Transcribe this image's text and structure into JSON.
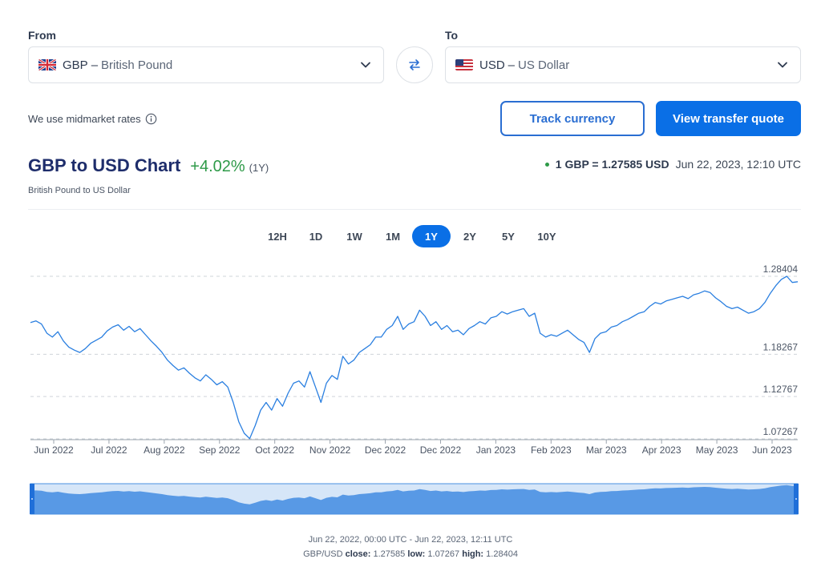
{
  "converter": {
    "from_label": "From",
    "to_label": "To",
    "from": {
      "code": "GBP",
      "separator": "–",
      "name": "British Pound"
    },
    "to": {
      "code": "USD",
      "separator": "–",
      "name": "US Dollar"
    }
  },
  "midmarket_text": "We use midmarket rates",
  "buttons": {
    "track": "Track currency",
    "quote": "View transfer quote"
  },
  "header": {
    "title": "GBP to USD Chart",
    "change": "+4.02%",
    "period": "(1Y)",
    "subtitle": "British Pound to US Dollar",
    "rate": "1 GBP = 1.27585 USD",
    "timestamp": "Jun 22, 2023, 12:10 UTC"
  },
  "tabs": [
    "12H",
    "1D",
    "1W",
    "1M",
    "1Y",
    "2Y",
    "5Y",
    "10Y"
  ],
  "active_tab": "1Y",
  "colors": {
    "accent": "#0a6fe6",
    "positive": "#2e9a48",
    "title": "#1e2d6b",
    "line": "#2a7fe0"
  },
  "chart_data": {
    "type": "line",
    "series": [
      {
        "values": [
          1.224,
          1.226,
          1.222,
          1.21,
          1.205,
          1.212,
          1.2,
          1.192,
          1.188,
          1.185,
          1.19,
          1.197,
          1.201,
          1.205,
          1.213,
          1.218,
          1.221,
          1.214,
          1.219,
          1.212,
          1.216,
          1.208,
          1.2,
          1.193,
          1.185,
          1.175,
          1.168,
          1.162,
          1.165,
          1.158,
          1.152,
          1.148,
          1.156,
          1.15,
          1.143,
          1.147,
          1.14,
          1.12,
          1.095,
          1.08,
          1.073,
          1.09,
          1.11,
          1.12,
          1.11,
          1.125,
          1.115,
          1.132,
          1.145,
          1.148,
          1.14,
          1.16,
          1.14,
          1.12,
          1.145,
          1.155,
          1.15,
          1.18,
          1.17,
          1.175,
          1.185,
          1.19,
          1.195,
          1.205,
          1.205,
          1.215,
          1.22,
          1.232,
          1.215,
          1.222,
          1.225,
          1.24,
          1.232,
          1.22,
          1.225,
          1.215,
          1.22,
          1.212,
          1.214,
          1.208,
          1.216,
          1.22,
          1.225,
          1.222,
          1.23,
          1.232,
          1.238,
          1.235,
          1.238,
          1.24,
          1.242,
          1.232,
          1.236,
          1.21,
          1.205,
          1.208,
          1.206,
          1.21,
          1.214,
          1.208,
          1.202,
          1.198,
          1.185,
          1.203,
          1.21,
          1.212,
          1.218,
          1.22,
          1.225,
          1.228,
          1.232,
          1.236,
          1.238,
          1.245,
          1.25,
          1.248,
          1.252,
          1.254,
          1.256,
          1.258,
          1.255,
          1.26,
          1.262,
          1.265,
          1.263,
          1.256,
          1.251,
          1.245,
          1.242,
          1.244,
          1.24,
          1.236,
          1.238,
          1.242,
          1.25,
          1.262,
          1.272,
          1.28,
          1.284,
          1.276,
          1.277
        ]
      }
    ],
    "x_labels": [
      "Jun 2022",
      "Jul 2022",
      "Aug 2022",
      "Sep 2022",
      "Oct 2022",
      "Nov 2022",
      "Dec 2022",
      "Dec 2022",
      "Jan 2023",
      "Feb 2023",
      "Mar 2023",
      "Apr 2023",
      "May 2023",
      "Jun 2023"
    ],
    "y_ticks": [
      "1.28404",
      "1.18267",
      "1.12767",
      "1.07267"
    ],
    "ylim": [
      1.07267,
      1.28404
    ],
    "grid": "dashed-horizontal",
    "navigator": true
  },
  "footer": {
    "range": "Jun 22, 2022, 00:00 UTC - Jun 22, 2023, 12:11 UTC",
    "pair": "GBP/USD",
    "close_label": "close:",
    "close": "1.27585",
    "low_label": "low:",
    "low": "1.07267",
    "high_label": "high:",
    "high": "1.28404"
  }
}
